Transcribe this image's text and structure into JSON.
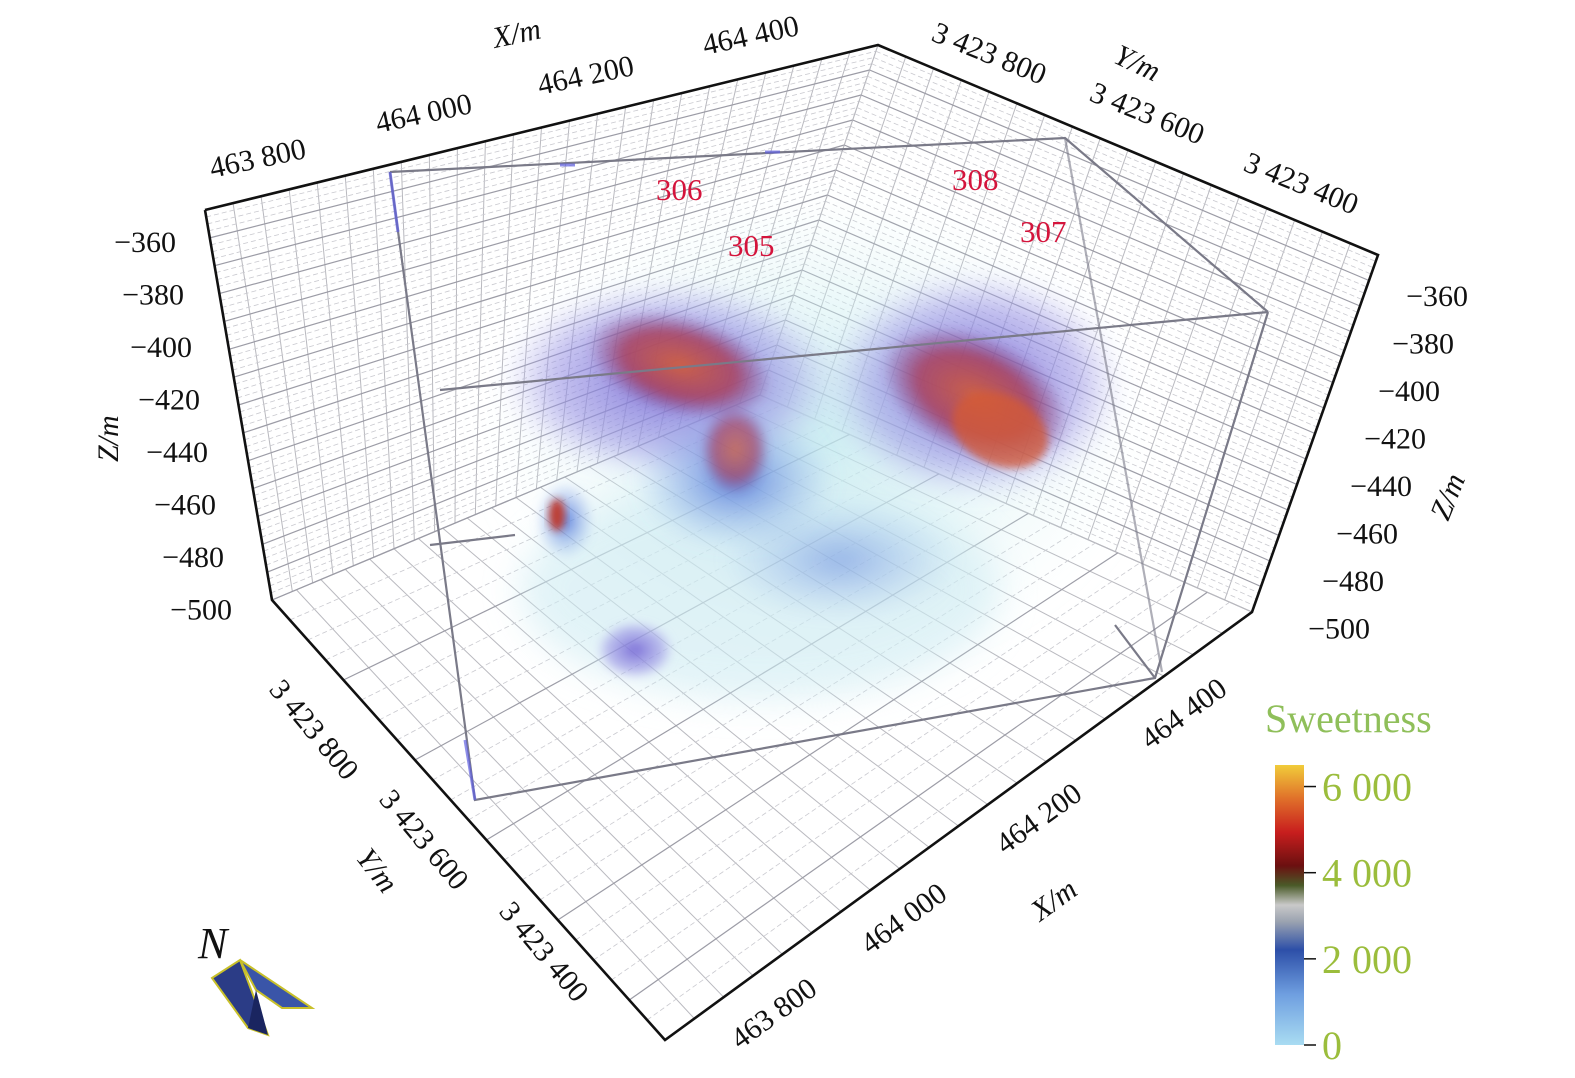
{
  "chart_data": {
    "type": "volume-3d",
    "axes": {
      "x": {
        "label": "X/m",
        "ticks": [
          "463 800",
          "464 000",
          "464 200",
          "464 400"
        ]
      },
      "y": {
        "label": "Y/m",
        "ticks": [
          "3 423 800",
          "3 423 600",
          "3 423 400"
        ]
      },
      "z": {
        "label": "Z/m",
        "ticks": [
          "−360",
          "−380",
          "−400",
          "−420",
          "−440",
          "−460",
          "−480",
          "−500"
        ]
      }
    },
    "wells": [
      {
        "name": "306"
      },
      {
        "name": "305"
      },
      {
        "name": "308"
      },
      {
        "name": "307"
      }
    ],
    "colorbar": {
      "title": "Sweetness",
      "ticks": [
        "6 000",
        "4 000",
        "2 000",
        "0"
      ],
      "range": [
        0,
        6500
      ]
    },
    "north_label": "N",
    "grid": true
  }
}
